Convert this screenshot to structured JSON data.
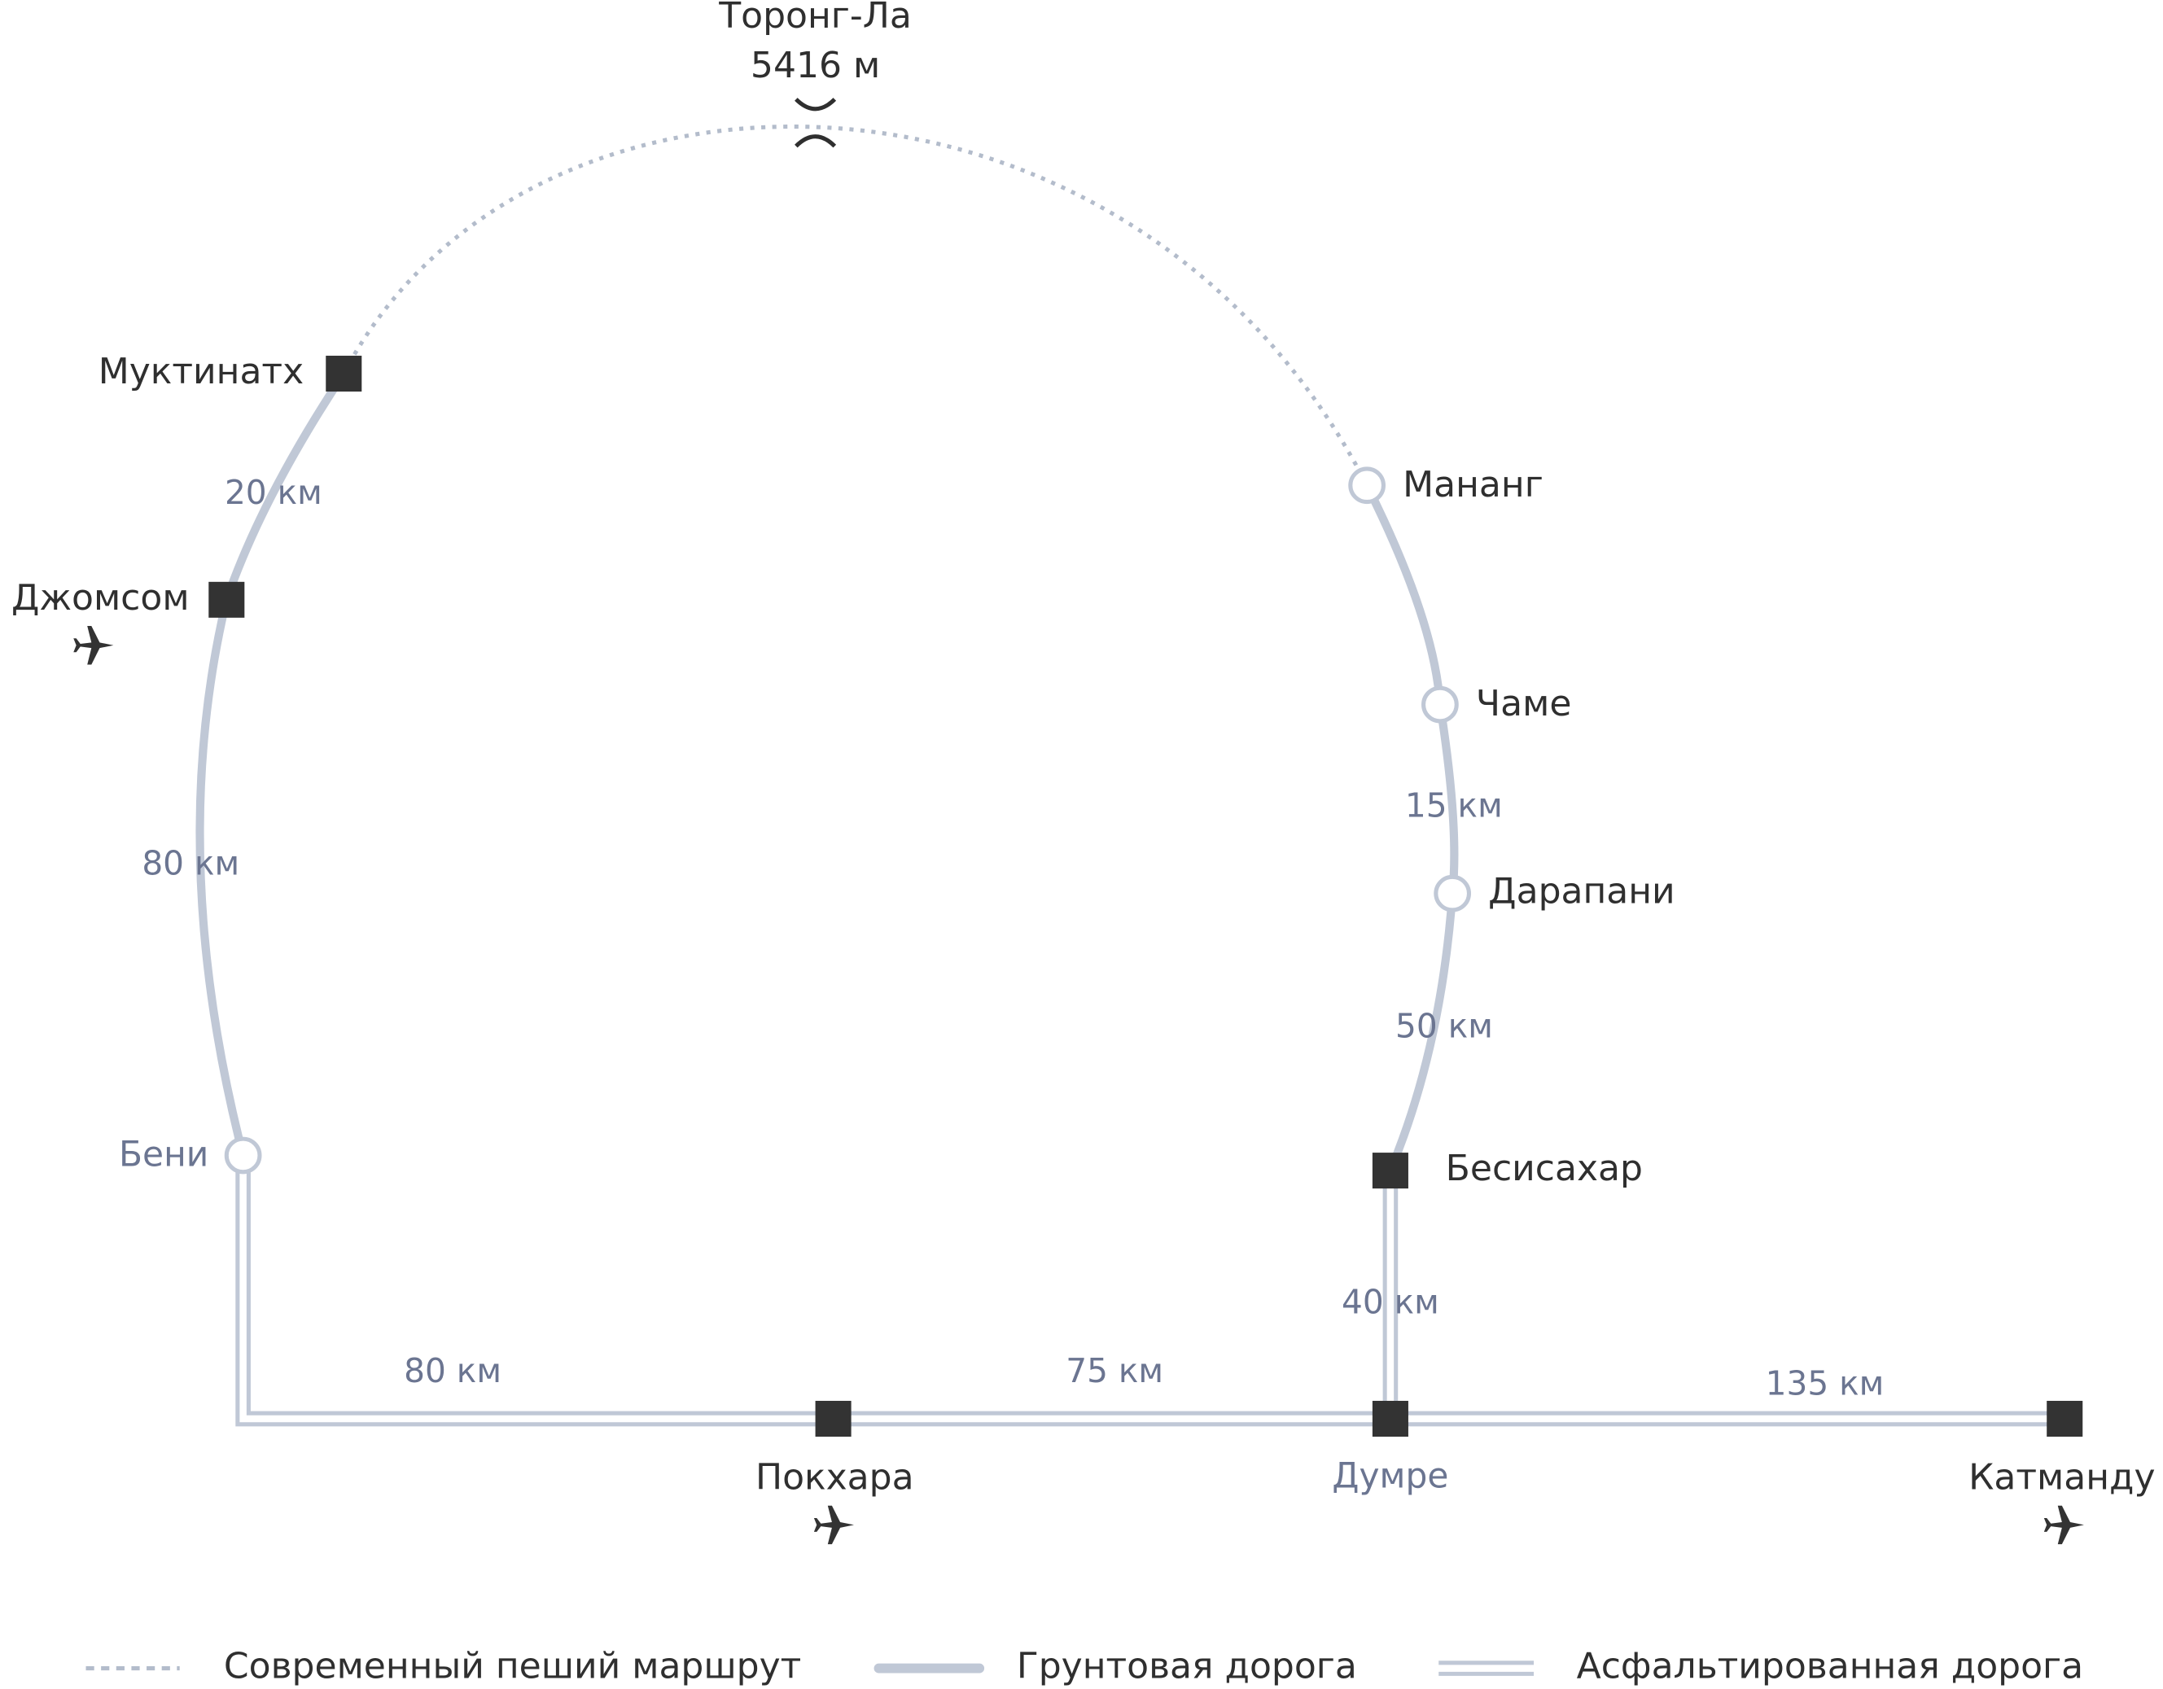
{
  "pass": {
    "name": "Торонг-Ла",
    "elevation": "5416 м"
  },
  "places": {
    "muktinath": "Муктинатх",
    "jomsom": "Джомсом",
    "beni": "Бени",
    "manang": "Мананг",
    "chame": "Чаме",
    "darapani": "Дарапани",
    "besisahar": "Бесисахар",
    "pokhara": "Покхара",
    "dumre": "Думре",
    "kathmandu": "Катманду"
  },
  "distances": {
    "muktinath_jomsom": "20 км",
    "jomsom_beni": "80 км",
    "chame_darapani": "15 км",
    "darapani_besisahar": "50 км",
    "besisahar_dumre": "40 км",
    "beni_pokhara": "80 км",
    "pokhara_dumre": "75 км",
    "dumre_kathmandu": "135 км"
  },
  "legend": {
    "trail": "Современный пеший маршрут",
    "dirt": "Грунтовая дорога",
    "asphalt": "Асфальтированная дорога"
  }
}
